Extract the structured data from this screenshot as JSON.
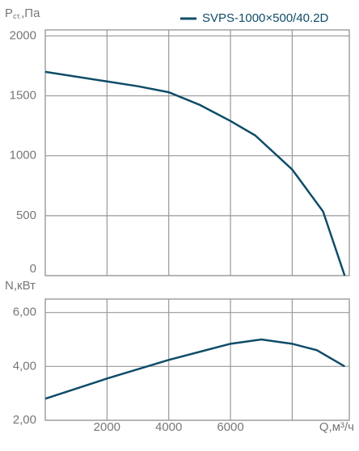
{
  "chart_data": [
    {
      "type": "line",
      "y_label": [
        "P",
        "ст.",
        ",Па"
      ],
      "x": [
        0,
        2000,
        3000,
        4000,
        5000,
        6000,
        6800,
        8000,
        9000,
        9700
      ],
      "series": [
        {
          "name": "SVPS-1000×500/40.2D",
          "color": "#0f4c68",
          "values": [
            1700,
            1620,
            1580,
            1530,
            1425,
            1290,
            1170,
            885,
            535,
            0
          ]
        }
      ],
      "xlim": [
        0,
        9850
      ],
      "xgrid": [
        2000,
        4000,
        6000,
        8000
      ],
      "ylim": [
        0,
        2050
      ],
      "yticks": [
        0,
        500,
        1000,
        1500,
        2000
      ],
      "grid": true
    },
    {
      "type": "line",
      "y_label": "N,кВт",
      "x_label": "Q,м³/ч",
      "x": [
        0,
        2000,
        4000,
        6000,
        7000,
        8000,
        8800,
        9700
      ],
      "series": [
        {
          "color": "#0f4c68",
          "values": [
            2.8,
            3.55,
            4.24,
            4.84,
            5.0,
            4.84,
            4.6,
            4.0
          ]
        }
      ],
      "xlim": [
        0,
        9850
      ],
      "xgrid": [
        2000,
        4000,
        6000,
        8000
      ],
      "xticks": [
        2000,
        4000,
        6000
      ],
      "ylim": [
        2,
        6.5
      ],
      "yticks": [
        {
          "value": 2,
          "label": "2,00"
        },
        {
          "value": 4,
          "label": "4,00"
        },
        {
          "value": 6,
          "label": "6,00"
        }
      ],
      "grid": true
    }
  ]
}
